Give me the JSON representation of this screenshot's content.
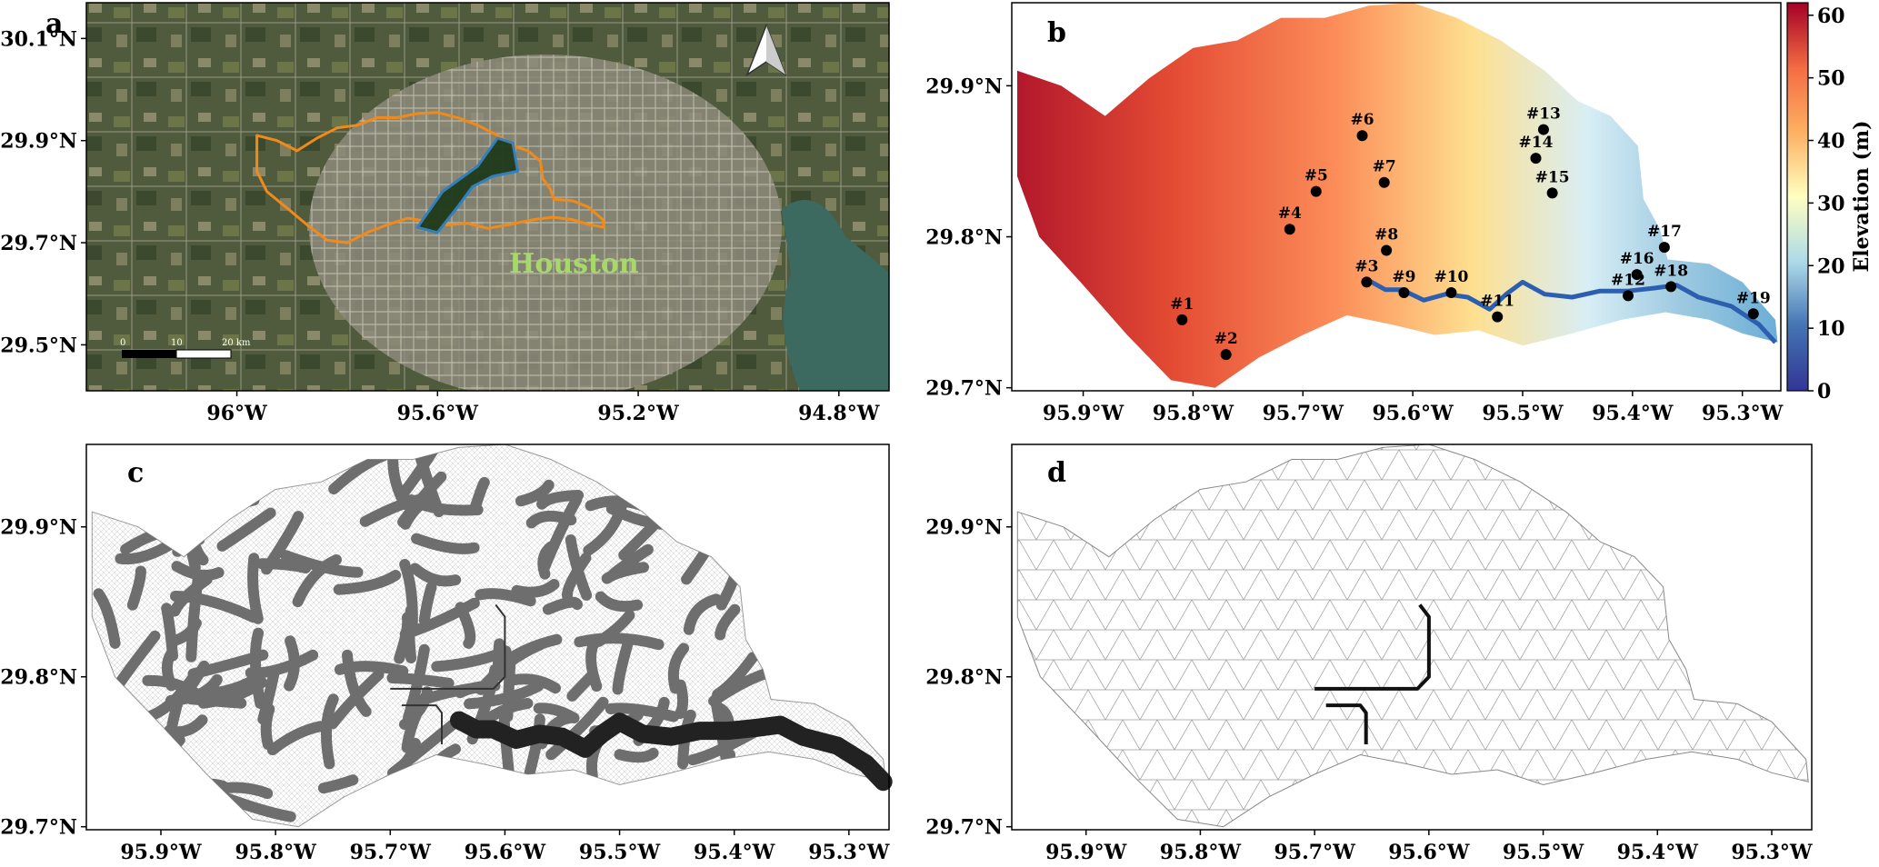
{
  "colors": {
    "orange": "#f28a1a",
    "blue": "#2f7fc1",
    "houston": "#a6d96a",
    "meshC": "#6e6e6e",
    "channel": "#222222"
  },
  "panel_a": {
    "label": "a",
    "place": "Houston",
    "scalebar": [
      "0",
      "10",
      "20 km"
    ],
    "yticks": [
      {
        "v": 30.1,
        "t": "30.1°N"
      },
      {
        "v": 29.9,
        "t": "29.9°N"
      },
      {
        "v": 29.7,
        "t": "29.7°N"
      },
      {
        "v": 29.5,
        "t": "29.5°N"
      }
    ],
    "xticks": [
      {
        "v": -96.0,
        "t": "96°W"
      },
      {
        "v": -95.6,
        "t": "95.6°W"
      },
      {
        "v": -95.2,
        "t": "95.2°W"
      },
      {
        "v": -94.8,
        "t": "94.8°W"
      }
    ],
    "xlim": [
      -96.3,
      -94.7
    ],
    "ylim": [
      29.41,
      30.17
    ]
  },
  "panel_b": {
    "label": "b",
    "colorbar_label": "Elevation (m)",
    "colorbar_ticks": [
      "0",
      "10",
      "20",
      "30",
      "40",
      "50",
      "60"
    ],
    "xlim": [
      -95.965,
      -95.265
    ],
    "ylim": [
      29.698,
      29.955
    ],
    "yticks": [
      {
        "v": 29.9,
        "t": "29.9°N"
      },
      {
        "v": 29.8,
        "t": "29.8°N"
      },
      {
        "v": 29.7,
        "t": "29.7°N"
      }
    ],
    "xticks": [
      {
        "v": -95.9,
        "t": "95.9°W"
      },
      {
        "v": -95.8,
        "t": "95.8°W"
      },
      {
        "v": -95.7,
        "t": "95.7°W"
      },
      {
        "v": -95.6,
        "t": "95.6°W"
      },
      {
        "v": -95.5,
        "t": "95.5°W"
      },
      {
        "v": -95.4,
        "t": "95.4°W"
      },
      {
        "v": -95.3,
        "t": "95.3°W"
      }
    ],
    "sites": [
      {
        "id": "#1",
        "lon": -95.81,
        "lat": 29.745
      },
      {
        "id": "#2",
        "lon": -95.77,
        "lat": 29.722
      },
      {
        "id": "#3",
        "lon": -95.642,
        "lat": 29.77
      },
      {
        "id": "#4",
        "lon": -95.712,
        "lat": 29.805
      },
      {
        "id": "#5",
        "lon": -95.688,
        "lat": 29.83
      },
      {
        "id": "#6",
        "lon": -95.646,
        "lat": 29.867
      },
      {
        "id": "#7",
        "lon": -95.626,
        "lat": 29.836
      },
      {
        "id": "#8",
        "lon": -95.624,
        "lat": 29.791
      },
      {
        "id": "#9",
        "lon": -95.608,
        "lat": 29.763
      },
      {
        "id": "#10",
        "lon": -95.565,
        "lat": 29.763
      },
      {
        "id": "#11",
        "lon": -95.523,
        "lat": 29.747
      },
      {
        "id": "#12",
        "lon": -95.404,
        "lat": 29.761
      },
      {
        "id": "#13",
        "lon": -95.481,
        "lat": 29.871
      },
      {
        "id": "#14",
        "lon": -95.488,
        "lat": 29.852
      },
      {
        "id": "#15",
        "lon": -95.473,
        "lat": 29.829
      },
      {
        "id": "#16",
        "lon": -95.396,
        "lat": 29.775
      },
      {
        "id": "#17",
        "lon": -95.371,
        "lat": 29.793
      },
      {
        "id": "#18",
        "lon": -95.365,
        "lat": 29.767
      },
      {
        "id": "#19",
        "lon": -95.29,
        "lat": 29.749
      }
    ]
  },
  "panel_c": {
    "label": "c",
    "xlim": [
      -95.965,
      -95.265
    ],
    "ylim": [
      29.698,
      29.955
    ],
    "yticks": [
      {
        "v": 29.9,
        "t": "29.9°N"
      },
      {
        "v": 29.8,
        "t": "29.8°N"
      },
      {
        "v": 29.7,
        "t": "29.7°N"
      }
    ],
    "xticks": [
      {
        "v": -95.9,
        "t": "95.9°W"
      },
      {
        "v": -95.8,
        "t": "95.8°W"
      },
      {
        "v": -95.7,
        "t": "95.7°W"
      },
      {
        "v": -95.6,
        "t": "95.6°W"
      },
      {
        "v": -95.5,
        "t": "95.5°W"
      },
      {
        "v": -95.4,
        "t": "95.4°W"
      },
      {
        "v": -95.3,
        "t": "95.3°W"
      }
    ]
  },
  "panel_d": {
    "label": "d",
    "xlim": [
      -95.965,
      -95.265
    ],
    "ylim": [
      29.698,
      29.955
    ],
    "yticks": [
      {
        "v": 29.9,
        "t": "29.9°N"
      },
      {
        "v": 29.8,
        "t": "29.8°N"
      },
      {
        "v": 29.7,
        "t": "29.7°N"
      }
    ],
    "xticks": [
      {
        "v": -95.9,
        "t": "95.9°W"
      },
      {
        "v": -95.8,
        "t": "95.8°W"
      },
      {
        "v": -95.7,
        "t": "95.7°W"
      },
      {
        "v": -95.6,
        "t": "95.6°W"
      },
      {
        "v": -95.5,
        "t": "95.5°W"
      },
      {
        "v": -95.4,
        "t": "95.4°W"
      },
      {
        "v": -95.3,
        "t": "95.3°W"
      }
    ]
  },
  "watershed_outline": [
    [
      -95.96,
      29.91
    ],
    [
      -95.92,
      29.9
    ],
    [
      -95.88,
      29.88
    ],
    [
      -95.84,
      29.905
    ],
    [
      -95.8,
      29.925
    ],
    [
      -95.76,
      29.93
    ],
    [
      -95.72,
      29.945
    ],
    [
      -95.68,
      29.945
    ],
    [
      -95.64,
      29.953
    ],
    [
      -95.6,
      29.955
    ],
    [
      -95.56,
      29.945
    ],
    [
      -95.52,
      29.93
    ],
    [
      -95.48,
      29.91
    ],
    [
      -95.45,
      29.89
    ],
    [
      -95.42,
      29.88
    ],
    [
      -95.395,
      29.86
    ],
    [
      -95.39,
      29.825
    ],
    [
      -95.375,
      29.805
    ],
    [
      -95.368,
      29.785
    ],
    [
      -95.33,
      29.782
    ],
    [
      -95.3,
      29.77
    ],
    [
      -95.27,
      29.745
    ],
    [
      -95.268,
      29.73
    ],
    [
      -95.3,
      29.736
    ],
    [
      -95.33,
      29.745
    ],
    [
      -95.37,
      29.75
    ],
    [
      -95.41,
      29.745
    ],
    [
      -95.46,
      29.735
    ],
    [
      -95.5,
      29.728
    ],
    [
      -95.54,
      29.738
    ],
    [
      -95.58,
      29.735
    ],
    [
      -95.62,
      29.742
    ],
    [
      -95.66,
      29.748
    ],
    [
      -95.7,
      29.735
    ],
    [
      -95.74,
      29.72
    ],
    [
      -95.78,
      29.7
    ],
    [
      -95.82,
      29.705
    ],
    [
      -95.86,
      29.735
    ],
    [
      -95.9,
      29.768
    ],
    [
      -95.94,
      29.8
    ],
    [
      -95.96,
      29.84
    ]
  ],
  "channel": [
    [
      -95.64,
      29.771
    ],
    [
      -95.625,
      29.765
    ],
    [
      -95.61,
      29.765
    ],
    [
      -95.59,
      29.758
    ],
    [
      -95.57,
      29.762
    ],
    [
      -95.55,
      29.76
    ],
    [
      -95.53,
      29.752
    ],
    [
      -95.515,
      29.762
    ],
    [
      -95.5,
      29.77
    ],
    [
      -95.48,
      29.762
    ],
    [
      -95.455,
      29.76
    ],
    [
      -95.43,
      29.764
    ],
    [
      -95.405,
      29.764
    ],
    [
      -95.38,
      29.766
    ],
    [
      -95.36,
      29.768
    ],
    [
      -95.34,
      29.76
    ],
    [
      -95.31,
      29.754
    ],
    [
      -95.285,
      29.742
    ],
    [
      -95.27,
      29.73
    ]
  ],
  "tributaries": [
    [
      [
        -95.608,
        29.848
      ],
      [
        -95.6,
        29.84
      ],
      [
        -95.6,
        29.8
      ],
      [
        -95.61,
        29.792
      ],
      [
        -95.7,
        29.792
      ]
    ],
    [
      [
        -95.69,
        29.781
      ],
      [
        -95.66,
        29.781
      ],
      [
        -95.655,
        29.776
      ],
      [
        -95.655,
        29.755
      ]
    ]
  ]
}
